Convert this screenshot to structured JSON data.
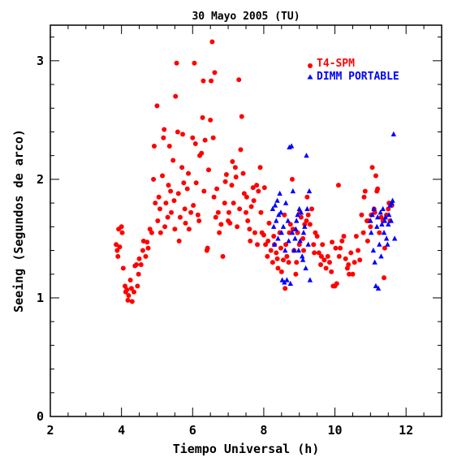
{
  "chart_data": {
    "type": "scatter",
    "title": "30 Mayo 2005 (TU)",
    "xlabel": "Tiempo Universal (h)",
    "ylabel": "Seeing (Segundos de arco)",
    "xlim": [
      2,
      13
    ],
    "ylim": [
      0,
      3.3
    ],
    "xticks": [
      2,
      4,
      6,
      8,
      10,
      12
    ],
    "yticks": [
      0,
      1,
      2,
      3
    ],
    "legend_position": "top-right",
    "series": [
      {
        "name": "T4-SPM",
        "color": "#ff0000",
        "marker": "circle",
        "points": [
          [
            3.85,
            1.45
          ],
          [
            3.88,
            1.4
          ],
          [
            3.9,
            1.35
          ],
          [
            3.92,
            1.58
          ],
          [
            3.95,
            1.43
          ],
          [
            4.0,
            1.6
          ],
          [
            4.02,
            1.55
          ],
          [
            4.05,
            1.25
          ],
          [
            4.1,
            1.1
          ],
          [
            4.12,
            1.05
          ],
          [
            4.15,
            1.07
          ],
          [
            4.18,
            0.98
          ],
          [
            4.2,
            1.02
          ],
          [
            4.25,
            1.15
          ],
          [
            4.28,
            1.08
          ],
          [
            4.3,
            0.97
          ],
          [
            4.35,
            1.05
          ],
          [
            4.38,
            1.27
          ],
          [
            4.42,
            1.28
          ],
          [
            4.45,
            1.1
          ],
          [
            4.48,
            1.2
          ],
          [
            4.5,
            1.33
          ],
          [
            4.55,
            1.28
          ],
          [
            4.6,
            1.4
          ],
          [
            4.62,
            1.48
          ],
          [
            4.68,
            1.35
          ],
          [
            4.72,
            1.47
          ],
          [
            4.75,
            1.42
          ],
          [
            4.8,
            1.58
          ],
          [
            4.85,
            1.55
          ],
          [
            4.9,
            2.0
          ],
          [
            4.92,
            2.28
          ],
          [
            4.95,
            1.8
          ],
          [
            5.0,
            2.62
          ],
          [
            5.02,
            1.65
          ],
          [
            5.05,
            1.85
          ],
          [
            5.08,
            1.75
          ],
          [
            5.1,
            1.55
          ],
          [
            5.15,
            2.03
          ],
          [
            5.18,
            2.35
          ],
          [
            5.2,
            2.42
          ],
          [
            5.22,
            1.6
          ],
          [
            5.25,
            1.8
          ],
          [
            5.3,
            1.68
          ],
          [
            5.32,
            1.95
          ],
          [
            5.35,
            2.28
          ],
          [
            5.38,
            1.9
          ],
          [
            5.4,
            1.72
          ],
          [
            5.45,
            2.16
          ],
          [
            5.48,
            1.82
          ],
          [
            5.5,
            1.58
          ],
          [
            5.52,
            2.7
          ],
          [
            5.55,
            2.98
          ],
          [
            5.58,
            2.4
          ],
          [
            5.6,
            1.88
          ],
          [
            5.62,
            1.48
          ],
          [
            5.65,
            1.68
          ],
          [
            5.7,
            2.1
          ],
          [
            5.72,
            2.38
          ],
          [
            5.75,
            1.97
          ],
          [
            5.78,
            1.75
          ],
          [
            5.8,
            1.63
          ],
          [
            5.85,
            1.92
          ],
          [
            5.88,
            2.05
          ],
          [
            5.9,
            1.58
          ],
          [
            5.95,
            1.72
          ],
          [
            6.0,
            2.35
          ],
          [
            6.02,
            1.78
          ],
          [
            6.05,
            2.98
          ],
          [
            6.08,
            2.3
          ],
          [
            6.1,
            1.97
          ],
          [
            6.15,
            1.7
          ],
          [
            6.18,
            1.65
          ],
          [
            6.2,
            2.2
          ],
          [
            6.25,
            2.22
          ],
          [
            6.28,
            2.52
          ],
          [
            6.3,
            2.83
          ],
          [
            6.32,
            1.9
          ],
          [
            6.35,
            2.33
          ],
          [
            6.4,
            1.4
          ],
          [
            6.42,
            1.42
          ],
          [
            6.45,
            2.08
          ],
          [
            6.5,
            2.5
          ],
          [
            6.52,
            2.83
          ],
          [
            6.55,
            3.16
          ],
          [
            6.58,
            2.35
          ],
          [
            6.6,
            1.85
          ],
          [
            6.62,
            2.9
          ],
          [
            6.65,
            1.68
          ],
          [
            6.68,
            1.92
          ],
          [
            6.72,
            1.72
          ],
          [
            6.75,
            1.55
          ],
          [
            6.8,
            1.62
          ],
          [
            6.85,
            1.35
          ],
          [
            6.9,
            1.8
          ],
          [
            6.92,
            1.98
          ],
          [
            6.95,
            2.04
          ],
          [
            7.0,
            1.65
          ],
          [
            7.02,
            1.72
          ],
          [
            7.05,
            1.63
          ],
          [
            7.1,
            1.95
          ],
          [
            7.12,
            2.15
          ],
          [
            7.15,
            1.8
          ],
          [
            7.2,
            2.1
          ],
          [
            7.22,
            2.02
          ],
          [
            7.25,
            1.6
          ],
          [
            7.3,
            2.84
          ],
          [
            7.32,
            1.75
          ],
          [
            7.35,
            2.25
          ],
          [
            7.38,
            2.53
          ],
          [
            7.42,
            2.05
          ],
          [
            7.45,
            1.88
          ],
          [
            7.5,
            1.72
          ],
          [
            7.52,
            1.85
          ],
          [
            7.55,
            1.65
          ],
          [
            7.6,
            1.58
          ],
          [
            7.62,
            1.48
          ],
          [
            7.65,
            1.77
          ],
          [
            7.7,
            1.93
          ],
          [
            7.72,
            1.82
          ],
          [
            7.75,
            1.55
          ],
          [
            7.8,
            1.95
          ],
          [
            7.82,
            1.45
          ],
          [
            7.85,
            1.9
          ],
          [
            7.9,
            2.1
          ],
          [
            7.92,
            1.72
          ],
          [
            7.95,
            1.55
          ],
          [
            8.0,
            1.53
          ],
          [
            8.02,
            1.93
          ],
          [
            8.05,
            1.45
          ],
          [
            8.1,
            1.35
          ],
          [
            8.12,
            1.48
          ],
          [
            8.15,
            1.63
          ],
          [
            8.2,
            1.4
          ],
          [
            8.25,
            1.3
          ],
          [
            8.28,
            1.52
          ],
          [
            8.3,
            1.45
          ],
          [
            8.35,
            1.38
          ],
          [
            8.38,
            1.33
          ],
          [
            8.4,
            1.25
          ],
          [
            8.45,
            1.55
          ],
          [
            8.48,
            1.42
          ],
          [
            8.5,
            1.22
          ],
          [
            8.55,
            1.32
          ],
          [
            8.58,
            1.7
          ],
          [
            8.6,
            1.08
          ],
          [
            8.62,
            1.45
          ],
          [
            8.65,
            1.35
          ],
          [
            8.7,
            1.3
          ],
          [
            8.72,
            1.55
          ],
          [
            8.75,
            1.62
          ],
          [
            8.8,
            2.0
          ],
          [
            8.82,
            1.58
          ],
          [
            8.85,
            1.4
          ],
          [
            8.9,
            1.2
          ],
          [
            8.92,
            1.3
          ],
          [
            8.95,
            1.55
          ],
          [
            9.0,
            1.45
          ],
          [
            9.02,
            1.72
          ],
          [
            9.05,
            1.68
          ],
          [
            9.1,
            1.5
          ],
          [
            9.12,
            1.4
          ],
          [
            9.15,
            1.62
          ],
          [
            9.2,
            1.65
          ],
          [
            9.22,
            1.85
          ],
          [
            9.25,
            1.7
          ],
          [
            9.3,
            1.62
          ],
          [
            9.35,
            1.75
          ],
          [
            9.4,
            1.45
          ],
          [
            9.42,
            1.38
          ],
          [
            9.45,
            1.55
          ],
          [
            9.5,
            1.52
          ],
          [
            9.55,
            1.38
          ],
          [
            9.6,
            1.28
          ],
          [
            9.62,
            1.35
          ],
          [
            9.65,
            1.45
          ],
          [
            9.7,
            1.32
          ],
          [
            9.75,
            1.25
          ],
          [
            9.8,
            1.35
          ],
          [
            9.85,
            1.3
          ],
          [
            9.9,
            1.22
          ],
          [
            9.92,
            1.47
          ],
          [
            9.95,
            1.1
          ],
          [
            10.0,
            1.1
          ],
          [
            10.02,
            1.42
          ],
          [
            10.05,
            1.12
          ],
          [
            10.1,
            1.95
          ],
          [
            10.12,
            1.35
          ],
          [
            10.15,
            1.42
          ],
          [
            10.2,
            1.48
          ],
          [
            10.25,
            1.52
          ],
          [
            10.3,
            1.33
          ],
          [
            10.35,
            1.25
          ],
          [
            10.38,
            1.28
          ],
          [
            10.4,
            1.2
          ],
          [
            10.45,
            1.38
          ],
          [
            10.5,
            1.2
          ],
          [
            10.55,
            1.3
          ],
          [
            10.6,
            1.52
          ],
          [
            10.65,
            1.4
          ],
          [
            10.7,
            1.32
          ],
          [
            10.75,
            1.7
          ],
          [
            10.8,
            1.55
          ],
          [
            10.82,
            1.85
          ],
          [
            10.85,
            1.9
          ],
          [
            10.9,
            1.65
          ],
          [
            10.92,
            1.48
          ],
          [
            10.95,
            1.65
          ],
          [
            11.0,
            1.6
          ],
          [
            11.02,
            1.7
          ],
          [
            11.05,
            2.1
          ],
          [
            11.1,
            1.75
          ],
          [
            11.12,
            1.72
          ],
          [
            11.15,
            2.03
          ],
          [
            11.18,
            1.9
          ],
          [
            11.2,
            1.92
          ],
          [
            11.25,
            1.55
          ],
          [
            11.3,
            1.68
          ],
          [
            11.35,
            1.65
          ],
          [
            11.38,
            1.17
          ],
          [
            11.4,
            1.42
          ],
          [
            11.45,
            1.7
          ],
          [
            11.5,
            1.75
          ],
          [
            11.52,
            1.8
          ],
          [
            11.55,
            1.65
          ],
          [
            11.6,
            1.78
          ]
        ]
      },
      {
        "name": "DIMM PORTABLE",
        "color": "#0000ff",
        "marker": "triangle",
        "points": [
          [
            8.25,
            1.75
          ],
          [
            8.28,
            1.6
          ],
          [
            8.3,
            1.45
          ],
          [
            8.32,
            1.78
          ],
          [
            8.35,
            1.65
          ],
          [
            8.38,
            1.82
          ],
          [
            8.4,
            1.5
          ],
          [
            8.42,
            1.7
          ],
          [
            8.45,
            1.88
          ],
          [
            8.48,
            1.72
          ],
          [
            8.5,
            1.55
          ],
          [
            8.52,
            1.15
          ],
          [
            8.55,
            1.6
          ],
          [
            8.58,
            1.13
          ],
          [
            8.6,
            1.4
          ],
          [
            8.62,
            1.8
          ],
          [
            8.65,
            1.15
          ],
          [
            8.68,
            1.65
          ],
          [
            8.7,
            1.48
          ],
          [
            8.72,
            2.27
          ],
          [
            8.75,
            1.12
          ],
          [
            8.78,
            2.28
          ],
          [
            8.8,
            1.55
          ],
          [
            8.82,
            1.9
          ],
          [
            8.85,
            1.4
          ],
          [
            8.88,
            1.5
          ],
          [
            8.9,
            1.58
          ],
          [
            8.92,
            1.65
          ],
          [
            8.95,
            1.7
          ],
          [
            8.98,
            1.4
          ],
          [
            9.0,
            1.75
          ],
          [
            9.02,
            1.48
          ],
          [
            9.05,
            1.72
          ],
          [
            9.08,
            1.35
          ],
          [
            9.1,
            1.32
          ],
          [
            9.12,
            1.55
          ],
          [
            9.15,
            1.6
          ],
          [
            9.18,
            1.25
          ],
          [
            9.2,
            2.2
          ],
          [
            9.22,
            1.75
          ],
          [
            9.25,
            1.45
          ],
          [
            9.28,
            1.9
          ],
          [
            9.3,
            1.15
          ],
          [
            11.0,
            1.65
          ],
          [
            11.02,
            1.55
          ],
          [
            11.05,
            1.7
          ],
          [
            11.08,
            1.4
          ],
          [
            11.1,
            1.75
          ],
          [
            11.12,
            1.3
          ],
          [
            11.15,
            1.1
          ],
          [
            11.18,
            1.6
          ],
          [
            11.2,
            1.68
          ],
          [
            11.22,
            1.08
          ],
          [
            11.25,
            1.45
          ],
          [
            11.28,
            1.72
          ],
          [
            11.3,
            1.35
          ],
          [
            11.32,
            1.62
          ],
          [
            11.35,
            1.75
          ],
          [
            11.38,
            1.55
          ],
          [
            11.4,
            1.65
          ],
          [
            11.42,
            1.68
          ],
          [
            11.45,
            1.5
          ],
          [
            11.48,
            1.45
          ],
          [
            11.5,
            1.62
          ],
          [
            11.52,
            1.7
          ],
          [
            11.55,
            1.78
          ],
          [
            11.58,
            1.65
          ],
          [
            11.6,
            1.8
          ],
          [
            11.62,
            1.82
          ],
          [
            11.65,
            2.38
          ],
          [
            11.68,
            1.5
          ]
        ]
      }
    ]
  }
}
